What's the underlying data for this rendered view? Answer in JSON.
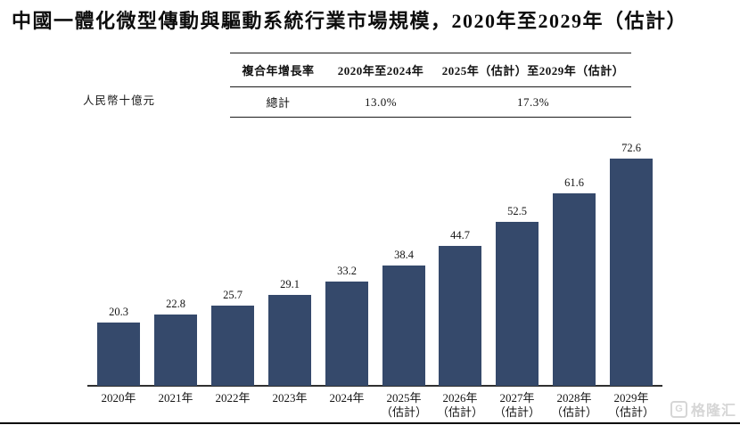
{
  "title": "中國一體化微型傳動與驅動系統行業市場規模，2020年至2029年（估計）",
  "unit_label": "人民幣十億元",
  "cagr_table": {
    "col1_header": "複合年增長率",
    "col2_header": "2020年至2024年",
    "col3_header": "2025年（估計）至2029年（估計）",
    "row_label": "總計",
    "cagr_2020_2024": "13.0%",
    "cagr_2025_2029": "17.3%"
  },
  "chart_data": {
    "type": "bar",
    "title": "中國一體化微型傳動與驅動系統行業市場規模，2020年至2029年（估計）",
    "ylabel": "人民幣十億元",
    "categories": [
      "2020年",
      "2021年",
      "2022年",
      "2023年",
      "2024年",
      "2025年",
      "2026年",
      "2027年",
      "2028年",
      "2029年"
    ],
    "category_sublabels": [
      "",
      "",
      "",
      "",
      "",
      "（估計）",
      "（估計）",
      "（估計）",
      "（估計）",
      "（估計）"
    ],
    "values": [
      20.3,
      22.8,
      25.7,
      29.1,
      33.2,
      38.4,
      44.7,
      52.5,
      61.6,
      72.6
    ],
    "value_labels": [
      "20.3",
      "22.8",
      "25.7",
      "29.1",
      "33.2",
      "38.4",
      "44.7",
      "52.5",
      "61.6",
      "72.6"
    ],
    "ylim": [
      0,
      75
    ],
    "grid": false,
    "legend": "none",
    "bar_color": "#35496B"
  },
  "watermark": {
    "icon": "gelonghui-g-logo",
    "icon_glyph": "G",
    "text": "格隆汇"
  },
  "colors": {
    "bar": "#35496B",
    "axis": "#303030",
    "text": "#111111",
    "watermark": "#D6D6D6"
  }
}
